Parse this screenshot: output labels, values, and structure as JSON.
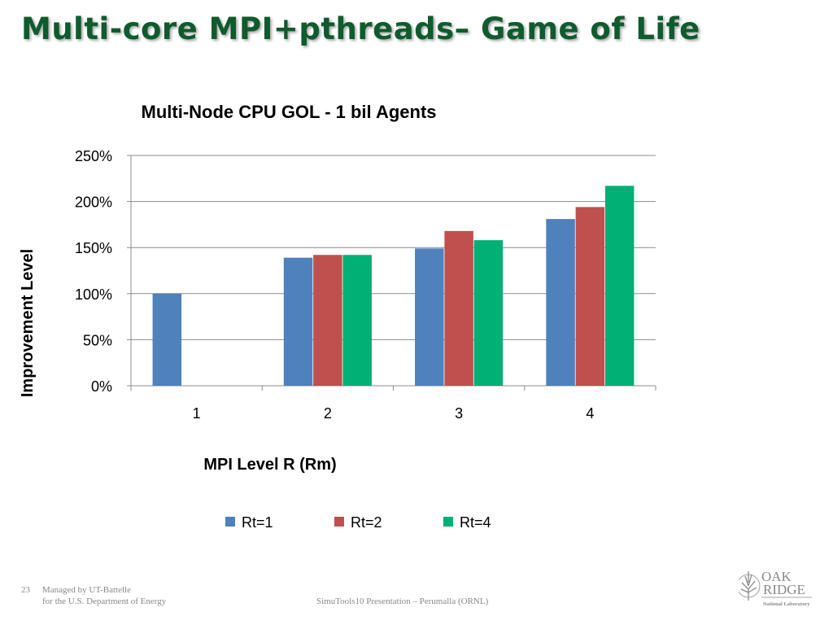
{
  "slide": {
    "title": "Multi-core MPI+pthreads– Game of Life",
    "slide_number": "23",
    "managed_line1": "Managed by UT-Battelle",
    "managed_line2": "for the U.S. Department of Energy",
    "presentation": "SimuTools10 Presentation – Perumalla (ORNL)",
    "logo": {
      "line1": "OAK",
      "line2": "RIDGE",
      "line3": "National Laboratory",
      "icon": "leaf-icon"
    }
  },
  "chart_data": {
    "type": "bar",
    "title": "Multi-Node CPU GOL - 1 bil Agents",
    "xlabel": "MPI Level R (Rm)",
    "ylabel": "Improvement Level",
    "categories": [
      "1",
      "2",
      "3",
      "4"
    ],
    "ylim": [
      0,
      250
    ],
    "yticks": [
      "0%",
      "50%",
      "100%",
      "150%",
      "200%",
      "250%"
    ],
    "grid": true,
    "legend_position": "bottom",
    "series": [
      {
        "name": "Rt=1",
        "color": "#4f81bd",
        "values": [
          100,
          139,
          149,
          181
        ]
      },
      {
        "name": "Rt=2",
        "color": "#c0504d",
        "values": [
          null,
          142,
          168,
          194
        ]
      },
      {
        "name": "Rt=4",
        "color": "#00b074",
        "values": [
          null,
          142,
          158,
          217
        ]
      }
    ]
  }
}
